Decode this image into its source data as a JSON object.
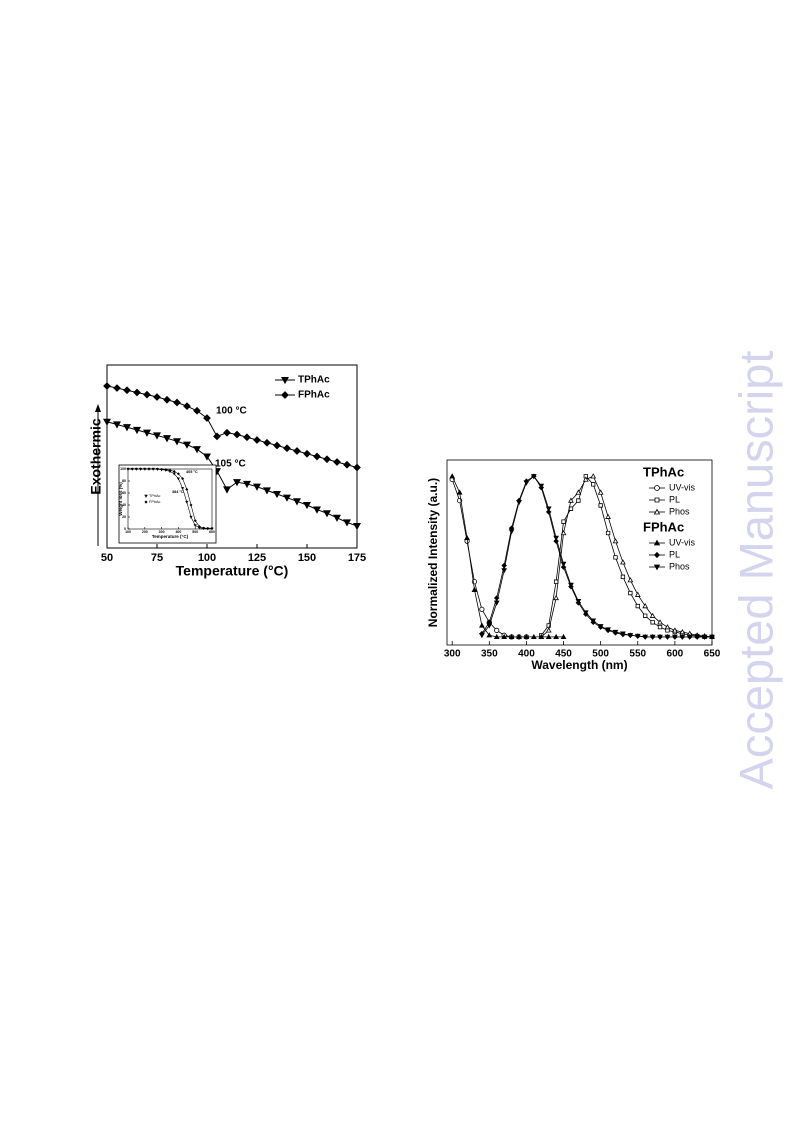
{
  "watermark": "Accepted Manuscript",
  "chart_data": [
    {
      "type": "line",
      "x_label": "Temperature (°C)",
      "y_label": "Exothermic",
      "x": [
        50,
        55,
        60,
        65,
        70,
        75,
        80,
        85,
        90,
        95,
        100,
        105,
        110,
        115,
        120,
        125,
        130,
        135,
        140,
        145,
        150,
        155,
        160,
        165,
        170,
        175
      ],
      "xlim": [
        50,
        175
      ],
      "xticks": [
        50,
        75,
        100,
        125,
        150,
        175
      ],
      "ylim": [
        0,
        100
      ],
      "legend": "upper right",
      "series": [
        {
          "name": "TPhAc",
          "marker": "triangle-down",
          "color": "#000000",
          "values": [
            69,
            67.5,
            66,
            64.5,
            63,
            61.5,
            60,
            58.3,
            56.5,
            54,
            50,
            42,
            32,
            36,
            35,
            33.5,
            31.5,
            29.5,
            27.5,
            25.5,
            23.5,
            21,
            19,
            16.5,
            14,
            12
          ]
        },
        {
          "name": "FPhAc",
          "marker": "diamond",
          "color": "#000000",
          "values": [
            88.5,
            87.4,
            86.2,
            85,
            83.8,
            82.5,
            81,
            79.5,
            77.5,
            75,
            71,
            61,
            63,
            62,
            60.5,
            59,
            57.5,
            56,
            54.5,
            53,
            51.5,
            50,
            48.5,
            47,
            45.5,
            44
          ]
        }
      ],
      "annotations": [
        "100 °C",
        "105 °C"
      ],
      "inset": {
        "type": "line",
        "x_label": "Temperature (°C)",
        "y_label": "Weight loss (%)",
        "x": [
          100,
          125,
          150,
          175,
          200,
          225,
          250,
          275,
          300,
          325,
          350,
          375,
          400,
          425,
          450,
          475,
          500,
          525,
          550,
          575,
          600
        ],
        "xlim": [
          100,
          600
        ],
        "xticks": [
          100,
          200,
          300,
          400,
          500,
          600
        ],
        "ylim": [
          0,
          100
        ],
        "yticks": [
          0,
          20,
          40,
          60,
          80,
          100
        ],
        "series": [
          {
            "name": "TPhAc",
            "marker": "triangle-down",
            "color": "#000000",
            "values": [
              100,
              100,
              100,
              100,
              100,
              100,
              100,
              99.5,
              99,
              98,
              96,
              92,
              84,
              68,
              45,
              20,
              6,
              2,
              1,
              0.5,
              0.5
            ]
          },
          {
            "name": "FPhAc",
            "marker": "diamond",
            "color": "#000000",
            "values": [
              100,
              100,
              100,
              100,
              100,
              100,
              100,
              100,
              99.5,
              99,
              98,
              96,
              92,
              84,
              66,
              40,
              14,
              4,
              1.5,
              1,
              1
            ]
          }
        ],
        "annotations": [
          "384 °C",
          "405 °C"
        ]
      }
    },
    {
      "type": "line",
      "x_label": "Wavelength (nm)",
      "y_label": "Normalized Intensity (a.u.)",
      "x": [
        300,
        310,
        320,
        330,
        340,
        350,
        360,
        370,
        380,
        390,
        400,
        410,
        420,
        430,
        440,
        450,
        460,
        470,
        480,
        490,
        500,
        510,
        520,
        530,
        540,
        550,
        560,
        570,
        580,
        590,
        600,
        610,
        620,
        630,
        640,
        650
      ],
      "xlim": [
        293,
        650
      ],
      "xticks": [
        300,
        350,
        400,
        450,
        500,
        550,
        600,
        650
      ],
      "ylim": [
        -0.04,
        1.1
      ],
      "legend": "upper right",
      "groups": [
        {
          "name": "TPhAc",
          "series": [
            {
              "name": "UV-vis",
              "marker": "circle-open",
              "color": "#000000",
              "values": [
                0.98,
                0.85,
                0.6,
                0.35,
                0.18,
                0.1,
                0.05,
                0.02,
                0.01,
                0.01,
                0.01,
                null,
                null,
                null,
                null,
                null,
                null,
                null,
                null,
                null,
                null,
                null,
                null,
                null,
                null,
                null,
                null,
                null,
                null,
                null,
                null,
                null,
                null,
                null,
                null,
                null
              ]
            },
            {
              "name": "PL",
              "marker": "square-open",
              "color": "#000000",
              "values": [
                null,
                null,
                null,
                null,
                null,
                null,
                null,
                null,
                null,
                null,
                null,
                null,
                0.02,
                0.08,
                0.35,
                0.72,
                0.8,
                0.85,
                1.0,
                0.95,
                0.82,
                0.65,
                0.5,
                0.38,
                0.28,
                0.2,
                0.14,
                0.1,
                0.07,
                0.05,
                0.04,
                0.03,
                0.02,
                0.015,
                0.01,
                0.01
              ]
            },
            {
              "name": "Phos",
              "marker": "triangle-up-open",
              "color": "#000000",
              "values": [
                null,
                null,
                null,
                null,
                null,
                null,
                null,
                null,
                null,
                null,
                null,
                null,
                0.01,
                0.05,
                0.25,
                0.65,
                0.85,
                0.9,
                0.98,
                1.0,
                0.9,
                0.75,
                0.6,
                0.47,
                0.36,
                0.27,
                0.2,
                0.14,
                0.1,
                0.07,
                0.05,
                0.04,
                0.03,
                0.02,
                0.015,
                0.01
              ]
            }
          ]
        },
        {
          "name": "FPhAc",
          "series": [
            {
              "name": "UV-vis",
              "marker": "triangle-up",
              "color": "#000000",
              "values": [
                1.0,
                0.9,
                0.62,
                0.3,
                0.08,
                0.02,
                0.01,
                0.01,
                0.01,
                0.01,
                0.01,
                0.01,
                0.01,
                0.01,
                0.01,
                0.01,
                null,
                null,
                null,
                null,
                null,
                null,
                null,
                null,
                null,
                null,
                null,
                null,
                null,
                null,
                null,
                null,
                null,
                null,
                null,
                null
              ]
            },
            {
              "name": "PL",
              "marker": "diamond",
              "color": "#000000",
              "values": [
                null,
                null,
                null,
                null,
                0.03,
                0.1,
                0.25,
                0.45,
                0.68,
                0.85,
                0.97,
                1.0,
                0.93,
                0.78,
                0.6,
                0.44,
                0.32,
                0.22,
                0.15,
                0.1,
                0.07,
                0.05,
                0.035,
                0.025,
                0.02,
                0.015,
                0.01,
                0.01,
                0.01,
                0.01,
                0.01,
                0.01,
                0.01,
                0.01,
                0.01,
                0.01
              ]
            },
            {
              "name": "Phos",
              "marker": "triangle-down",
              "color": "#000000",
              "values": [
                null,
                null,
                null,
                null,
                0.02,
                0.08,
                0.22,
                0.42,
                0.66,
                0.84,
                0.96,
                1.0,
                0.94,
                0.8,
                0.62,
                0.46,
                0.33,
                0.23,
                0.16,
                0.11,
                0.075,
                0.055,
                0.04,
                0.03,
                0.02,
                0.015,
                0.01,
                0.01,
                0.01,
                0.01,
                0.01,
                0.01,
                0.01,
                0.01,
                0.01,
                0.01
              ]
            }
          ]
        }
      ]
    }
  ]
}
